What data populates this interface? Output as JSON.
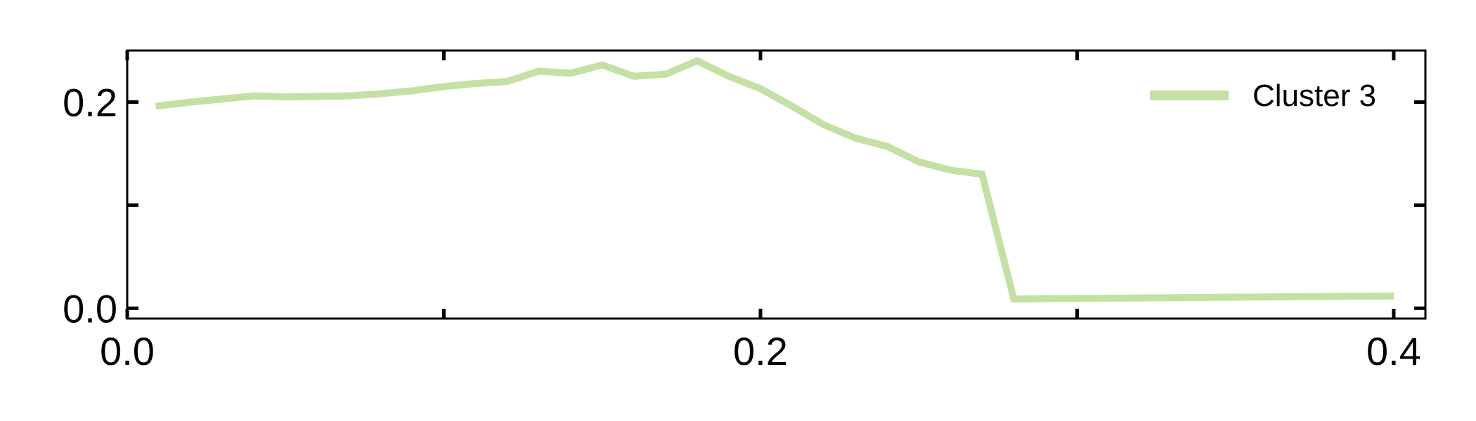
{
  "chart_data": {
    "type": "line",
    "title": "",
    "xlabel": "",
    "ylabel": "",
    "xlim": [
      0.0,
      0.41
    ],
    "ylim": [
      -0.01,
      0.25
    ],
    "x_ticks": [
      {
        "value": 0.0,
        "label": "0.0"
      },
      {
        "value": 0.1,
        "label": ""
      },
      {
        "value": 0.2,
        "label": "0.2"
      },
      {
        "value": 0.3,
        "label": ""
      },
      {
        "value": 0.4,
        "label": "0.4"
      }
    ],
    "y_ticks": [
      {
        "value": 0.0,
        "label": "0.0"
      },
      {
        "value": 0.1,
        "label": ""
      },
      {
        "value": 0.2,
        "label": "0.2"
      }
    ],
    "grid": false,
    "legend_position": "top-right",
    "series": [
      {
        "name": "Cluster 3",
        "color": "#c5e0a5",
        "x": [
          0.009,
          0.02,
          0.04,
          0.05,
          0.07,
          0.08,
          0.09,
          0.1,
          0.11,
          0.12,
          0.13,
          0.14,
          0.15,
          0.16,
          0.17,
          0.18,
          0.19,
          0.2,
          0.21,
          0.22,
          0.23,
          0.24,
          0.25,
          0.26,
          0.27,
          0.28,
          0.4
        ],
        "y": [
          0.196,
          0.2,
          0.206,
          0.205,
          0.206,
          0.208,
          0.211,
          0.215,
          0.218,
          0.22,
          0.23,
          0.228,
          0.236,
          0.225,
          0.227,
          0.24,
          0.225,
          0.213,
          0.196,
          0.178,
          0.165,
          0.157,
          0.142,
          0.134,
          0.13,
          0.009,
          0.012
        ]
      }
    ]
  }
}
